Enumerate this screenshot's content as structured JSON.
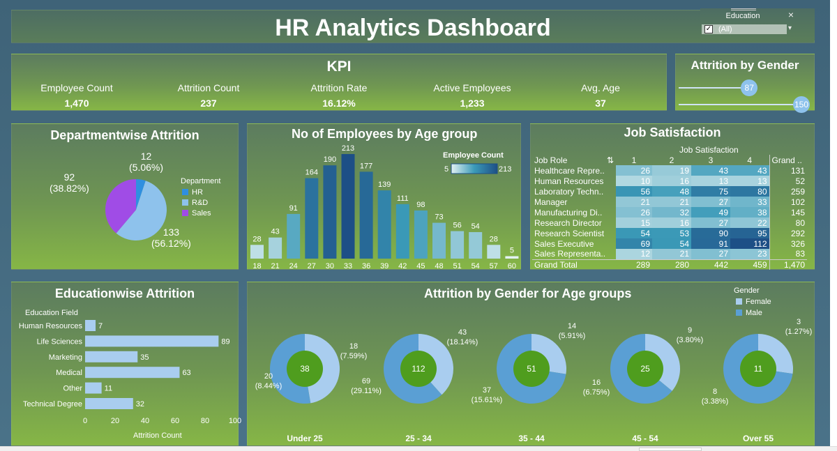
{
  "header": {
    "title": "HR Analytics Dashboard"
  },
  "filter": {
    "title": "Education",
    "value": "(All)",
    "close": "×",
    "checked": "✓",
    "dropdown": "▾"
  },
  "kpi": {
    "title": "KPI",
    "items": [
      {
        "label": "Employee Count",
        "value": "1,470"
      },
      {
        "label": "Attrition Count",
        "value": "237"
      },
      {
        "label": "Attrition Rate",
        "value": "16.12%"
      },
      {
        "label": "Active Employees",
        "value": "1,233"
      },
      {
        "label": "Avg. Age",
        "value": "37"
      }
    ]
  },
  "attrition_gender": {
    "title": "Attrition by Gender",
    "female": 87,
    "male": 150,
    "female_label": "87",
    "male_label": "150"
  },
  "department": {
    "title": "Departmentwise Attrition",
    "legend_title": "Department",
    "legend": [
      "HR",
      "R&D",
      "Sales"
    ],
    "colors": {
      "HR": "#2f8fe0",
      "R&D": "#8ec2ec",
      "Sales": "#a04ce6"
    },
    "labels": {
      "hr": "12\n(5.06%)",
      "rd": "133\n(56.12%)",
      "sales": "92\n(38.82%)"
    }
  },
  "age_group": {
    "title": "No of Employees by Age group",
    "legend_title": "Employee Count",
    "legend_min": "5",
    "legend_max": "213"
  },
  "job_satisfaction": {
    "title": "Job Satisfaction",
    "subtitle": "Job Satisfaction",
    "col_role": "Job Role",
    "sort_icon": "⇅",
    "columns": [
      "1",
      "2",
      "3",
      "4"
    ],
    "col_grand": "Grand ..",
    "rows": [
      {
        "role": "Healthcare Repre..",
        "vals": [
          26,
          19,
          43,
          43
        ],
        "total": "131"
      },
      {
        "role": "Human Resources",
        "vals": [
          10,
          16,
          13,
          13
        ],
        "total": "52"
      },
      {
        "role": "Laboratory Techn..",
        "vals": [
          56,
          48,
          75,
          80
        ],
        "total": "259"
      },
      {
        "role": "Manager",
        "vals": [
          21,
          21,
          27,
          33
        ],
        "total": "102"
      },
      {
        "role": "Manufacturing Di..",
        "vals": [
          26,
          32,
          49,
          38
        ],
        "total": "145"
      },
      {
        "role": "Research Director",
        "vals": [
          15,
          16,
          27,
          22
        ],
        "total": "80"
      },
      {
        "role": "Research Scientist",
        "vals": [
          54,
          53,
          90,
          95
        ],
        "total": "292"
      },
      {
        "role": "Sales Executive",
        "vals": [
          69,
          54,
          91,
          112
        ],
        "total": "326"
      },
      {
        "role": "Sales Representa..",
        "vals": [
          12,
          21,
          27,
          23
        ],
        "total": "83"
      }
    ],
    "total_row": {
      "label": "Grand Total",
      "vals": [
        "289",
        "280",
        "442",
        "459"
      ],
      "total": "1,470"
    }
  },
  "education": {
    "title": "Educationwise Attrition",
    "y_header": "Education Field",
    "x_label": "Attrition Count"
  },
  "gender_age": {
    "title": "Attrition by Gender for Age groups",
    "legend_title": "Gender",
    "legend": [
      "Female",
      "Male"
    ],
    "colors": {
      "Female": "#a9cdef",
      "Male": "#5a9fd4",
      "center": "#4f9d1e"
    }
  },
  "chart_data": [
    {
      "type": "pie",
      "title": "Departmentwise Attrition",
      "categories": [
        "HR",
        "R&D",
        "Sales"
      ],
      "values": [
        12,
        133,
        92
      ],
      "percent_labels": [
        "5.06%",
        "56.12%",
        "38.82%"
      ]
    },
    {
      "type": "bar",
      "title": "No of Employees by Age group",
      "categories": [
        "18",
        "21",
        "24",
        "27",
        "30",
        "33",
        "36",
        "39",
        "42",
        "45",
        "48",
        "51",
        "54",
        "57",
        "60"
      ],
      "values": [
        28,
        43,
        91,
        164,
        190,
        213,
        177,
        139,
        111,
        98,
        73,
        56,
        54,
        28,
        5
      ],
      "color_scale": {
        "min": 5,
        "max": 213
      }
    },
    {
      "type": "bar",
      "title": "Educationwise Attrition",
      "orientation": "horizontal",
      "categories": [
        "Human Resources",
        "Life Sciences",
        "Marketing",
        "Medical",
        "Other",
        "Technical Degree"
      ],
      "values": [
        7,
        89,
        35,
        63,
        11,
        32
      ],
      "xlim": [
        0,
        100
      ],
      "xticks": [
        "0",
        "20",
        "40",
        "60",
        "80",
        "100"
      ],
      "xlabel": "Attrition Count",
      "ylabel": "Education Field"
    },
    {
      "type": "pie",
      "title": "Attrition by Gender for Age groups",
      "groups": [
        {
          "name": "Under 25",
          "total": "38",
          "female": 18,
          "female_pct": "18\n(7.59%)",
          "male": 20,
          "male_pct": "20\n(8.44%)"
        },
        {
          "name": "25 - 34",
          "total": "112",
          "female": 43,
          "female_pct": "43\n(18.14%)",
          "male": 69,
          "male_pct": "69\n(29.11%)"
        },
        {
          "name": "35 - 44",
          "total": "51",
          "female": 14,
          "female_pct": "14\n(5.91%)",
          "male": 37,
          "male_pct": "37\n(15.61%)"
        },
        {
          "name": "45 - 54",
          "total": "25",
          "female": 9,
          "female_pct": "9\n(3.80%)",
          "male": 16,
          "male_pct": "16\n(6.75%)"
        },
        {
          "name": "Over 55",
          "total": "11",
          "female": 3,
          "female_pct": "3\n(1.27%)",
          "male": 8,
          "male_pct": "8\n(3.38%)"
        }
      ]
    }
  ]
}
